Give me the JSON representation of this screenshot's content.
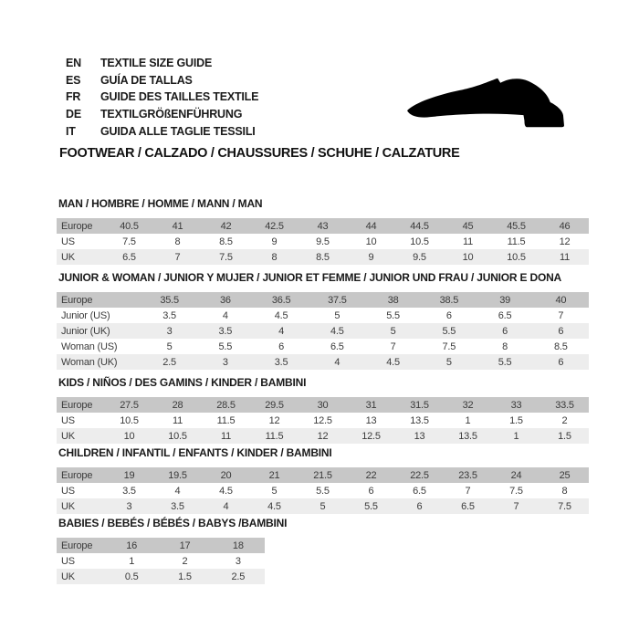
{
  "header": {
    "languages": [
      {
        "code": "EN",
        "label": "TEXTILE SIZE GUIDE"
      },
      {
        "code": "ES",
        "label": "GUÍA DE TALLAS"
      },
      {
        "code": "FR",
        "label": "GUIDE DES TAILLES TEXTILE"
      },
      {
        "code": "DE",
        "label": "TEXTILGRÖßENFÜHRUNG"
      },
      {
        "code": "IT",
        "label": "GUIDA ALLE TAGLIE TESSILI"
      }
    ],
    "category_title": "FOOTWEAR / CALZADO / CHAUSSURES / SCHUHE / CALZATURE",
    "icon": "dress-shoe-silhouette"
  },
  "colors": {
    "background": "#ffffff",
    "table_header_row": "#c7c7c7",
    "table_stripe_row": "#ededed",
    "text": "#3b3b3b",
    "title_text": "#1a1a1a",
    "shoe_icon": "#000000"
  },
  "tables": [
    {
      "id": "man",
      "title": "MAN / HOMBRE / HOMME / MANN / MAN",
      "rows": [
        {
          "label": "Europe",
          "values": [
            "40.5",
            "41",
            "42",
            "42.5",
            "43",
            "44",
            "44.5",
            "45",
            "45.5",
            "46"
          ]
        },
        {
          "label": "US",
          "values": [
            "7.5",
            "8",
            "8.5",
            "9",
            "9.5",
            "10",
            "10.5",
            "11",
            "11.5",
            "12"
          ]
        },
        {
          "label": "UK",
          "values": [
            "6.5",
            "7",
            "7.5",
            "8",
            "8.5",
            "9",
            "9.5",
            "10",
            "10.5",
            "11"
          ]
        }
      ]
    },
    {
      "id": "jw",
      "title": "JUNIOR & WOMAN / JUNIOR Y MUJER / JUNIOR ET FEMME / JUNIOR UND FRAU / JUNIOR E DONA",
      "rows": [
        {
          "label": "Europe",
          "values": [
            "35.5",
            "36",
            "36.5",
            "37.5",
            "38",
            "38.5",
            "39",
            "40"
          ]
        },
        {
          "label": "Junior (US)",
          "values": [
            "3.5",
            "4",
            "4.5",
            "5",
            "5.5",
            "6",
            "6.5",
            "7"
          ]
        },
        {
          "label": "Junior (UK)",
          "values": [
            "3",
            "3.5",
            "4",
            "4.5",
            "5",
            "5.5",
            "6",
            "6"
          ]
        },
        {
          "label": "Woman (US)",
          "values": [
            "5",
            "5.5",
            "6",
            "6.5",
            "7",
            "7.5",
            "8",
            "8.5"
          ]
        },
        {
          "label": "Woman (UK)",
          "values": [
            "2.5",
            "3",
            "3.5",
            "4",
            "4.5",
            "5",
            "5.5",
            "6"
          ]
        }
      ]
    },
    {
      "id": "kids",
      "title": "KIDS / NIÑOS / DES GAMINS / KINDER / BAMBINI",
      "rows": [
        {
          "label": "Europe",
          "values": [
            "27.5",
            "28",
            "28.5",
            "29.5",
            "30",
            "31",
            "31.5",
            "32",
            "33",
            "33.5"
          ]
        },
        {
          "label": "US",
          "values": [
            "10.5",
            "11",
            "11.5",
            "12",
            "12.5",
            "13",
            "13.5",
            "1",
            "1.5",
            "2"
          ]
        },
        {
          "label": "UK",
          "values": [
            "10",
            "10.5",
            "11",
            "11.5",
            "12",
            "12.5",
            "13",
            "13.5",
            "1",
            "1.5"
          ]
        }
      ]
    },
    {
      "id": "children",
      "title": "CHILDREN / INFANTIL / ENFANTS / KINDER / BAMBINI",
      "rows": [
        {
          "label": "Europe",
          "values": [
            "19",
            "19.5",
            "20",
            "21",
            "21.5",
            "22",
            "22.5",
            "23.5",
            "24",
            "25"
          ]
        },
        {
          "label": "US",
          "values": [
            "3.5",
            "4",
            "4.5",
            "5",
            "5.5",
            "6",
            "6.5",
            "7",
            "7.5",
            "8"
          ]
        },
        {
          "label": "UK",
          "values": [
            "3",
            "3.5",
            "4",
            "4.5",
            "5",
            "5.5",
            "6",
            "6.5",
            "7",
            "7.5"
          ]
        }
      ]
    },
    {
      "id": "babies",
      "title": "BABIES  / BEBÉS / BÉBÉS / BABYS /BAMBINI",
      "rows": [
        {
          "label": "Europe",
          "values": [
            "16",
            "17",
            "18"
          ]
        },
        {
          "label": "US",
          "values": [
            "1",
            "2",
            "3"
          ]
        },
        {
          "label": "UK",
          "values": [
            "0.5",
            "1.5",
            "2.5"
          ]
        }
      ]
    }
  ]
}
